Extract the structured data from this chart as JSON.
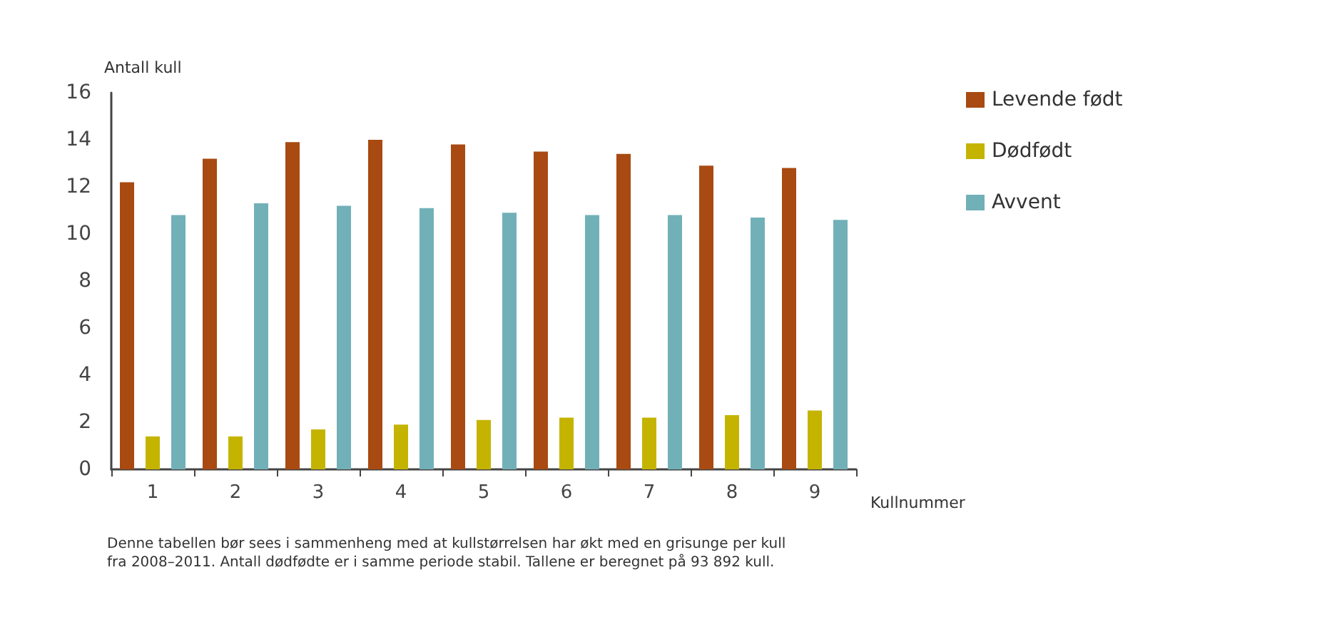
{
  "chart_data": {
    "type": "bar",
    "categories": [
      "1",
      "2",
      "3",
      "4",
      "5",
      "6",
      "7",
      "8",
      "9"
    ],
    "series": [
      {
        "name": "Levende født",
        "color": "#a84a12",
        "values": [
          12.2,
          13.2,
          13.9,
          14.0,
          13.8,
          13.5,
          13.4,
          12.9,
          12.8
        ]
      },
      {
        "name": "Dødfødt",
        "color": "#c4b400",
        "values": [
          1.4,
          1.4,
          1.7,
          1.9,
          2.1,
          2.2,
          2.2,
          2.3,
          2.5
        ]
      },
      {
        "name": "Avvent",
        "color": "#72b0b8",
        "values": [
          10.8,
          11.3,
          11.2,
          11.1,
          10.9,
          10.8,
          10.8,
          10.7,
          10.6
        ]
      }
    ],
    "xlabel": "Kullnummer",
    "ylabel": "Antall kull",
    "ylim": [
      0,
      16
    ],
    "yticks": [
      0,
      2,
      4,
      6,
      8,
      10,
      12,
      14,
      16
    ],
    "grid": false,
    "legend": "right",
    "annotations": [
      "Denne tabellen bør sees i sammenheng med at kullstørrelsen har økt med en grisunge per kull\nfra 2008–2011. Antall dødfødte er i samme periode stabil. Tallene er beregnet på 93 892 kull."
    ]
  }
}
